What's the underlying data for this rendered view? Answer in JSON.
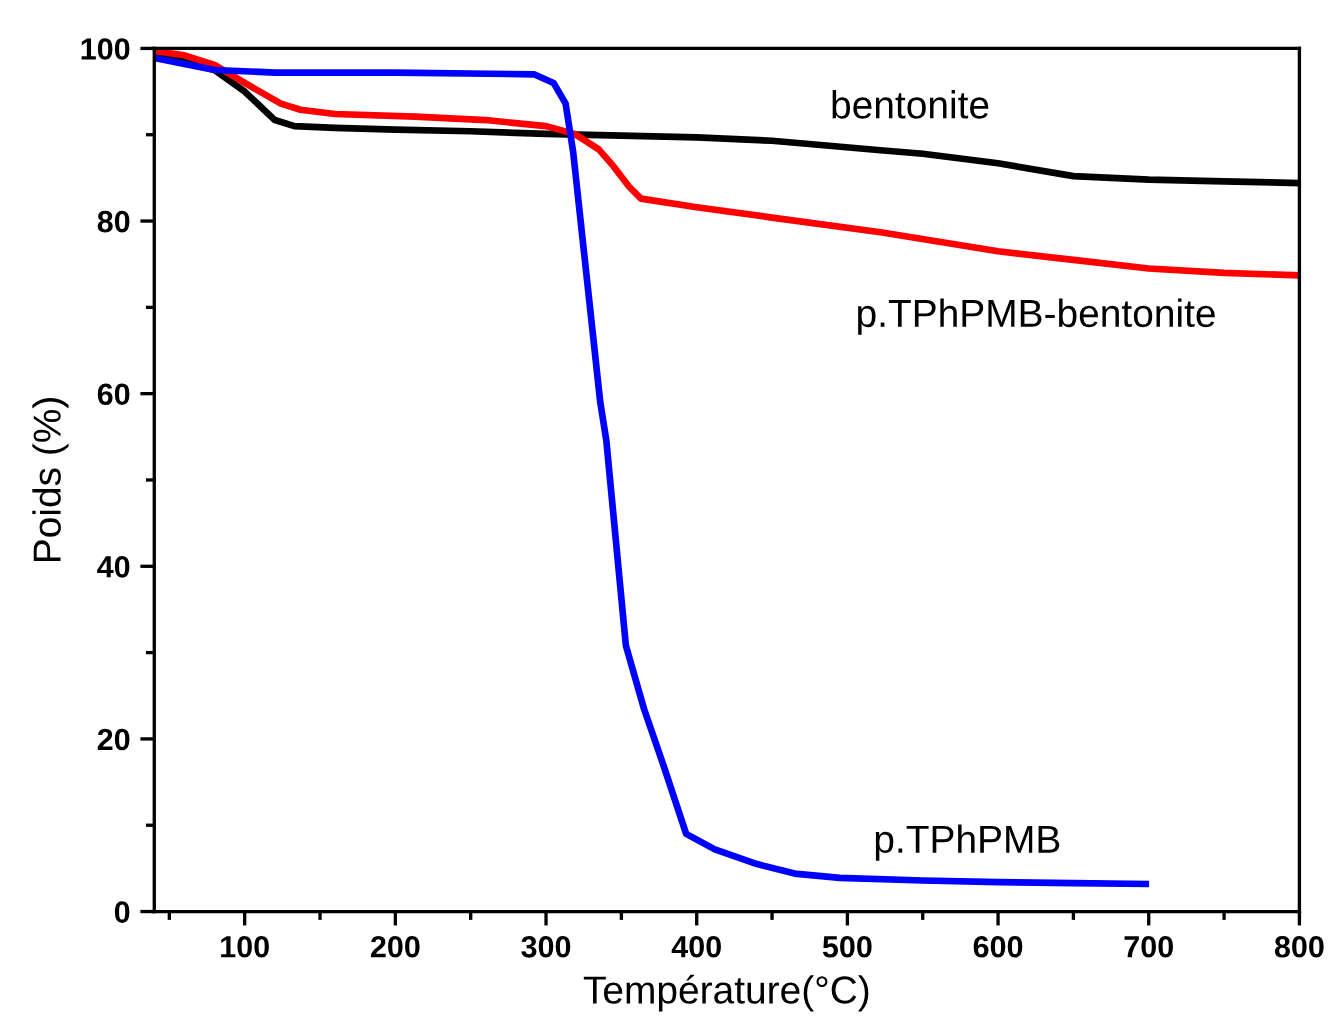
{
  "chart_data": {
    "type": "line",
    "xlabel": "Température(°C)",
    "ylabel": "Poids (%)",
    "xlim": [
      40,
      800
    ],
    "ylim": [
      0,
      100
    ],
    "xticks": [
      {
        "value": 50,
        "label": null
      },
      100,
      {
        "value": 150,
        "label": null
      },
      200,
      {
        "value": 250,
        "label": null
      },
      300,
      {
        "value": 350,
        "label": null
      },
      400,
      {
        "value": 450,
        "label": null
      },
      500,
      {
        "value": 550,
        "label": null
      },
      600,
      {
        "value": 650,
        "label": null
      },
      700,
      {
        "value": 750,
        "label": null
      },
      800
    ],
    "yticks": [
      0,
      {
        "value": 10,
        "label": null
      },
      20,
      {
        "value": 30,
        "label": null
      },
      40,
      {
        "value": 50,
        "label": null
      },
      60,
      {
        "value": 70,
        "label": null
      },
      80,
      {
        "value": 90,
        "label": null
      },
      100
    ],
    "grid": false,
    "legend": false,
    "line_style": "solid",
    "marker": "none",
    "series": [
      {
        "name": "bentonite",
        "color": "#000000",
        "x": [
          40,
          60,
          80,
          100,
          120,
          133,
          160,
          200,
          250,
          300,
          350,
          400,
          450,
          522,
          550,
          600,
          650,
          700,
          750,
          800
        ],
        "values": [
          99.5,
          98.6,
          97.5,
          95,
          91.7,
          91,
          90.8,
          90.6,
          90.4,
          90.1,
          89.9,
          89.7,
          89.3,
          88.2,
          87.8,
          86.7,
          85.2,
          84.8,
          84.6,
          84.4
        ]
      },
      {
        "name": "p.TPhPMB-bentonite",
        "color": "#ff0000",
        "x": [
          40,
          60,
          80,
          100,
          124,
          137,
          160,
          213,
          260,
          300,
          319,
          335,
          345,
          355,
          363,
          400,
          450,
          522,
          600,
          650,
          700,
          750,
          800
        ],
        "values": [
          99.7,
          99.2,
          98.1,
          96,
          93.6,
          92.9,
          92.4,
          92.1,
          91.7,
          91,
          90.1,
          88.3,
          86.3,
          84,
          82.6,
          81.6,
          80.4,
          78.7,
          76.5,
          75.5,
          74.5,
          74,
          73.7
        ]
      },
      {
        "name": "p.TPhPMB",
        "color": "#0000ff",
        "x": [
          40,
          60,
          80,
          120,
          200,
          292,
          305,
          313,
          318,
          336,
          340,
          353,
          365,
          378,
          393,
          412,
          440,
          465,
          495,
          550,
          600,
          650,
          698
        ],
        "values": [
          98.9,
          98.2,
          97.5,
          97.2,
          97.2,
          97,
          96,
          93.6,
          88,
          59,
          54.6,
          30.8,
          23.5,
          16.9,
          9,
          7.2,
          5.5,
          4.4,
          3.9,
          3.6,
          3.4,
          3.3,
          3.2
        ]
      }
    ]
  }
}
